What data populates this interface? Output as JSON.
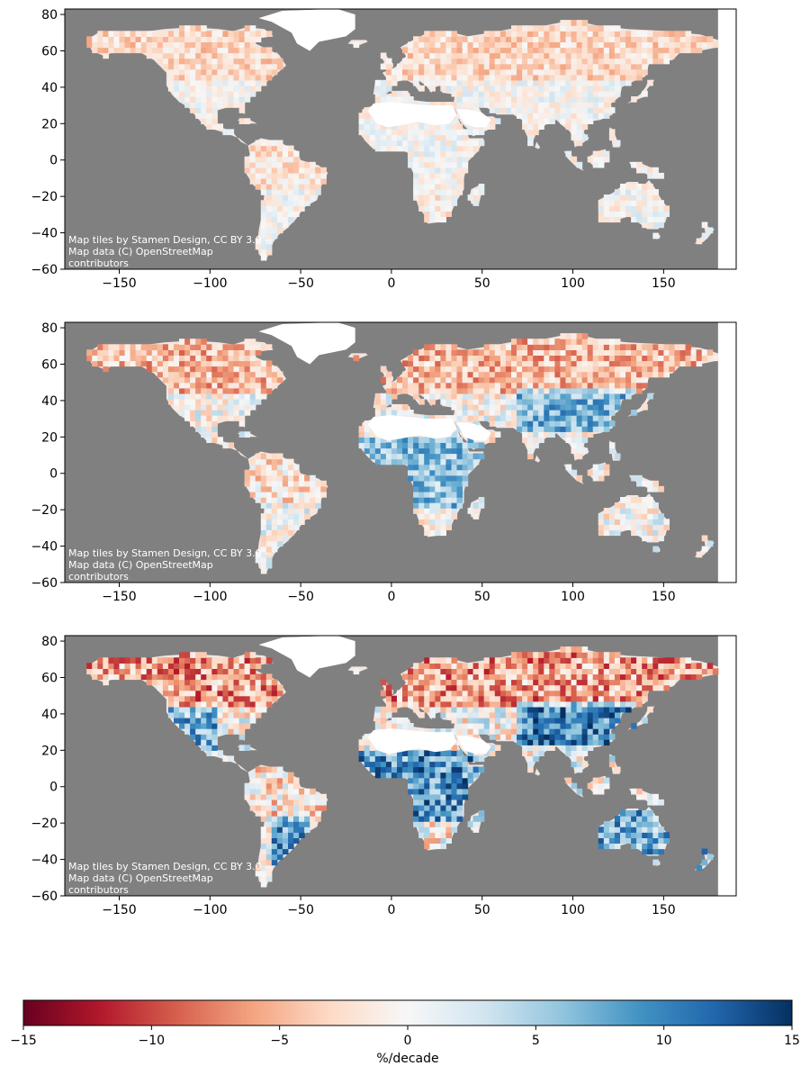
{
  "figure": {
    "panels": [
      {
        "id": "panel-1",
        "attribution": [
          "Map tiles by Stamen Design, CC BY 3.0 --",
          "Map data (C) OpenStreetMap",
          "contributors"
        ]
      },
      {
        "id": "panel-2",
        "attribution": [
          "Map tiles by Stamen Design, CC BY 3.0 --",
          "Map data (C) OpenStreetMap",
          "contributors"
        ]
      },
      {
        "id": "panel-3",
        "attribution": [
          "Map tiles by Stamen Design, CC BY 3.0 --",
          "Map data (C) OpenStreetMap",
          "contributors"
        ]
      }
    ],
    "x_axis": {
      "range": [
        -180,
        190
      ],
      "ticks": [
        -150,
        -100,
        -50,
        0,
        50,
        100,
        150
      ],
      "tick_labels": [
        "−150",
        "−100",
        "−50",
        "0",
        "50",
        "100",
        "150"
      ]
    },
    "y_axis": {
      "range": [
        -60,
        83
      ],
      "ticks": [
        -60,
        -40,
        -20,
        0,
        20,
        40,
        60,
        80
      ],
      "tick_labels": [
        "−60",
        "−40",
        "−20",
        "0",
        "20",
        "40",
        "60",
        "80"
      ]
    },
    "colorbar": {
      "label": "%/decade",
      "range": [
        -15,
        15
      ],
      "ticks": [
        -15,
        -10,
        -5,
        0,
        5,
        10,
        15
      ],
      "tick_labels": [
        "−15",
        "−10",
        "−5",
        "0",
        "5",
        "10",
        "15"
      ],
      "colormap": "RdBu",
      "colors": [
        "#67001f",
        "#b2182b",
        "#d6604d",
        "#f4a582",
        "#fddbc7",
        "#f7f7f7",
        "#d1e5f0",
        "#92c5de",
        "#4393c3",
        "#2166ac",
        "#053061"
      ]
    },
    "colors": {
      "ocean": "#808080",
      "land_no_data": "#ffffff"
    }
  }
}
